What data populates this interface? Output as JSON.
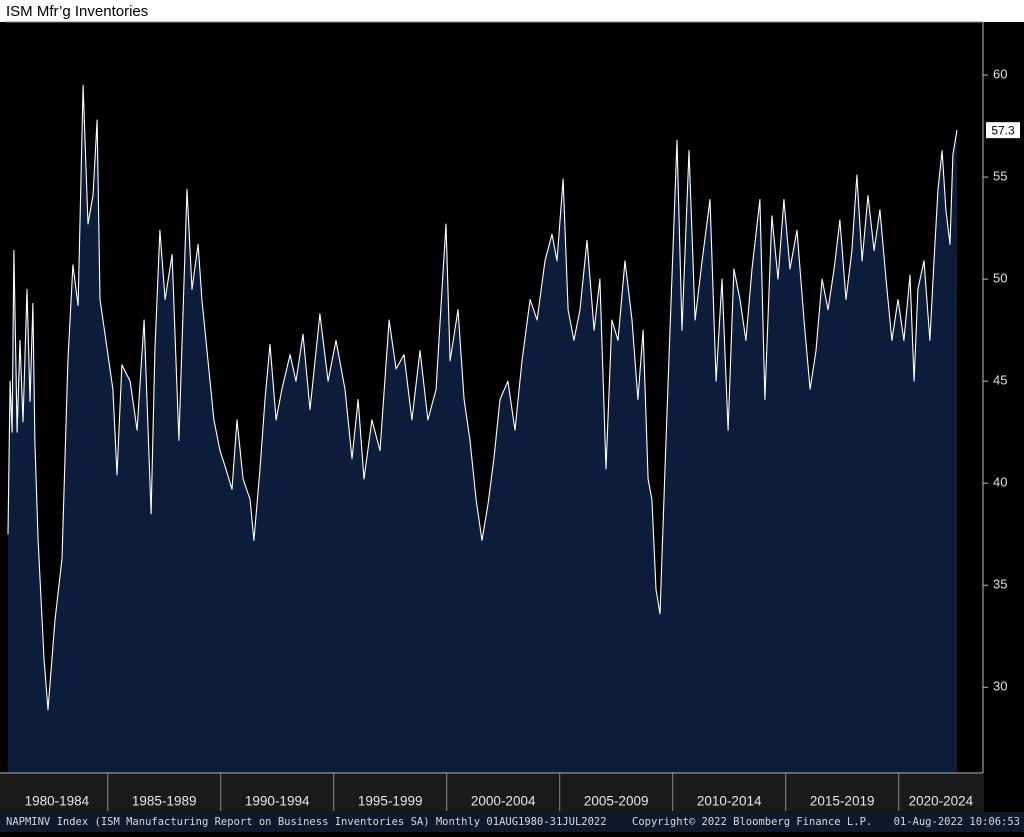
{
  "chart_data": {
    "type": "area",
    "title": "ISM Mfr’g Inventories",
    "x": [
      1980.59,
      1980.68,
      1980.77,
      1980.85,
      1980.99,
      1981.12,
      1981.25,
      1981.43,
      1981.56,
      1981.69,
      1981.78,
      1981.92,
      1982.18,
      1982.36,
      1982.67,
      1982.98,
      1983.24,
      1983.46,
      1983.69,
      1983.91,
      1984.13,
      1984.35,
      1984.53,
      1984.66,
      1984.88,
      1985.23,
      1985.41,
      1985.63,
      1985.99,
      1986.3,
      1986.61,
      1986.92,
      1987.09,
      1987.31,
      1987.54,
      1987.85,
      1988.15,
      1988.51,
      1988.73,
      1989.0,
      1989.17,
      1989.44,
      1989.7,
      1989.97,
      1990.23,
      1990.5,
      1990.72,
      1990.99,
      1991.3,
      1991.47,
      1991.74,
      1991.96,
      1992.18,
      1992.45,
      1992.71,
      1993.07,
      1993.33,
      1993.64,
      1993.95,
      1994.39,
      1994.75,
      1995.1,
      1995.5,
      1995.81,
      1996.08,
      1996.34,
      1996.69,
      1997.05,
      1997.45,
      1997.76,
      1998.11,
      1998.46,
      1998.82,
      1999.17,
      1999.53,
      1999.79,
      1999.97,
      2000.15,
      2000.5,
      2000.77,
      2001.03,
      2001.3,
      2001.56,
      2001.83,
      2002.09,
      2002.36,
      2002.71,
      2003.02,
      2003.33,
      2003.69,
      2004.0,
      2004.35,
      2004.66,
      2004.88,
      2005.15,
      2005.37,
      2005.63,
      2005.9,
      2006.21,
      2006.52,
      2006.78,
      2007.05,
      2007.31,
      2007.58,
      2007.89,
      2008.2,
      2008.46,
      2008.69,
      2008.91,
      2009.08,
      2009.26,
      2009.44,
      2009.66,
      2009.88,
      2010.19,
      2010.41,
      2010.72,
      2010.99,
      2011.3,
      2011.65,
      2011.92,
      2012.18,
      2012.45,
      2012.71,
      2012.98,
      2013.24,
      2013.51,
      2013.86,
      2014.08,
      2014.39,
      2014.66,
      2014.92,
      2015.19,
      2015.5,
      2015.81,
      2016.08,
      2016.34,
      2016.61,
      2016.87,
      2017.14,
      2017.4,
      2017.67,
      2017.93,
      2018.15,
      2018.38,
      2018.64,
      2018.91,
      2019.17,
      2019.44,
      2019.7,
      2019.97,
      2020.23,
      2020.5,
      2020.68,
      2020.85,
      2021.12,
      2021.38,
      2021.56,
      2021.74,
      2021.92,
      2022.09,
      2022.27,
      2022.4,
      2022.58
    ],
    "values": [
      37.5,
      45,
      42.5,
      51.4,
      42.5,
      47,
      43,
      49.5,
      44,
      48.8,
      42,
      37.2,
      31.4,
      28.9,
      33.3,
      36.3,
      46,
      50.7,
      48.7,
      59.5,
      52.7,
      54.1,
      57.8,
      49,
      47.3,
      44.6,
      40.4,
      45.8,
      45,
      42.6,
      48,
      38.5,
      46.5,
      52.4,
      49,
      51.2,
      42.1,
      54.4,
      49.5,
      51.7,
      49,
      46,
      43.1,
      41.6,
      40.7,
      39.7,
      43.1,
      40.2,
      39.2,
      37.2,
      40.7,
      44.1,
      46.8,
      43.1,
      44.6,
      46.3,
      45,
      47.3,
      43.6,
      48.3,
      45,
      47,
      44.6,
      41.2,
      44.1,
      40.2,
      43.1,
      41.6,
      48,
      45.6,
      46.3,
      43.1,
      46.5,
      43.1,
      44.6,
      49.5,
      52.7,
      46,
      48.5,
      44.1,
      42.1,
      39.2,
      37.2,
      39,
      41.2,
      44.1,
      45,
      42.6,
      46,
      49,
      48,
      50.9,
      52.2,
      50.9,
      54.9,
      48.5,
      47,
      48.5,
      51.9,
      47.5,
      50,
      40.7,
      48,
      47,
      50.9,
      48,
      44.1,
      47.5,
      40.2,
      39.2,
      34.8,
      33.6,
      40.7,
      47.5,
      56.8,
      47.5,
      56.3,
      48,
      50.9,
      53.9,
      45,
      50,
      42.6,
      50.5,
      49,
      47,
      50.5,
      53.9,
      44.1,
      53.1,
      50,
      53.9,
      50.5,
      52.4,
      48,
      44.6,
      46.5,
      50,
      48.5,
      50.5,
      52.9,
      49,
      51.4,
      55.1,
      50.9,
      54.1,
      51.4,
      53.4,
      50,
      47,
      49,
      47,
      50.2,
      45,
      49.5,
      50.9,
      47,
      50.9,
      54.4,
      56.3,
      53.4,
      51.7,
      56.1,
      57.3
    ],
    "xlim": [
      1980.5,
      2023.73
    ],
    "ylim": [
      25.8,
      62.6
    ],
    "yticks": [
      30,
      35,
      40,
      45,
      50,
      55,
      60
    ],
    "xticks": [
      {
        "value": 1980,
        "label": "1980-1984"
      },
      {
        "value": 1985,
        "label": "1985-1989"
      },
      {
        "value": 1990,
        "label": "1990-1994"
      },
      {
        "value": 1995,
        "label": "1995-1999"
      },
      {
        "value": 2000,
        "label": "2000-2004"
      },
      {
        "value": 2005,
        "label": "2005-2009"
      },
      {
        "value": 2010,
        "label": "2010-2014"
      },
      {
        "value": 2015,
        "label": "2015-2019"
      },
      {
        "value": 2020,
        "label": "2020-2024"
      }
    ],
    "color": "#0b1d3a",
    "line_color": "#ffffff",
    "footer": {
      "source": "NAPMINV Index (ISM Manufacturing Report on Business Inventories SA) Monthly 01AUG1980-31JUL2022",
      "copyright": "Copyright© 2022 Bloomberg Finance L.P.",
      "timestamp": "01-Aug-2022 10:06:53"
    }
  }
}
